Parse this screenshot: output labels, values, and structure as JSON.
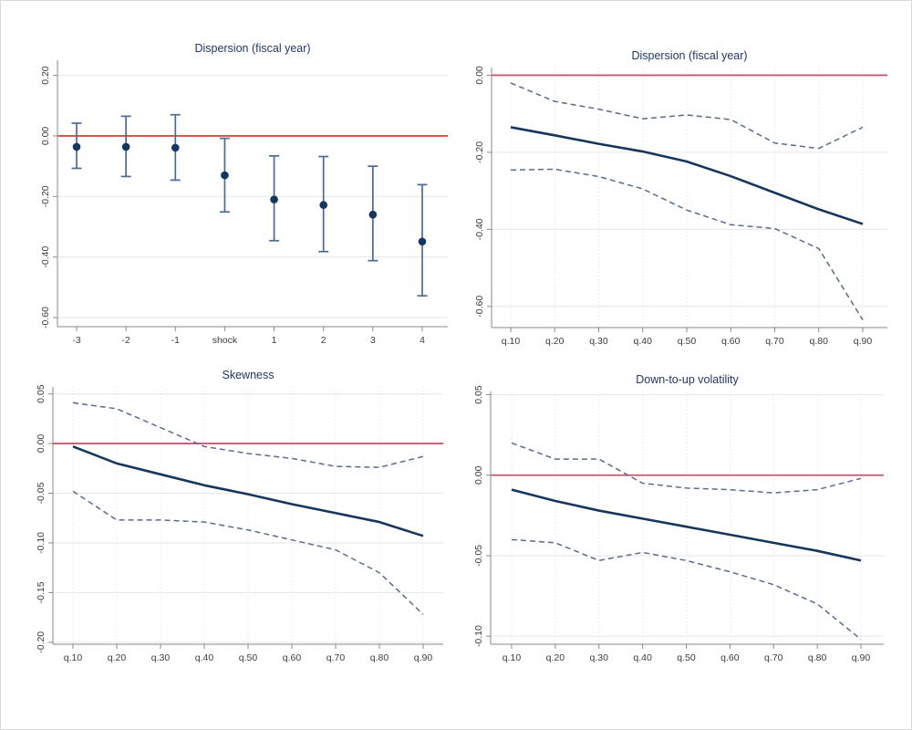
{
  "figure": {
    "background": "#ffffff",
    "border_color": "#d8d8d8",
    "description": "2x2 panel figure of quantile impulse-response estimates with confidence bands"
  },
  "colors": {
    "title": "#1f3864",
    "solid_line": "#17365d",
    "dashed_line": "#5a6b8c",
    "errorbar": "#4a6b96",
    "marker": "#14365f",
    "grid": "#e6e6e6",
    "vgrid": "#eadce0",
    "axis": "#8a8a8a",
    "tick_text": "#3d3d3d",
    "refline_bright_red": "#e8463a",
    "refline_rose": "#c9566f"
  },
  "chart_data": [
    {
      "type": "scatter",
      "title": "Dispersion (fiscal year)",
      "xlabel": "",
      "ylabel": "",
      "categories": [
        "-3",
        "-2",
        "-1",
        "shock",
        "1",
        "2",
        "3",
        "4"
      ],
      "points": [
        {
          "x": "-3",
          "est": -0.036,
          "lo": -0.107,
          "hi": 0.042
        },
        {
          "x": "-2",
          "est": -0.036,
          "lo": -0.134,
          "hi": 0.065
        },
        {
          "x": "-1",
          "est": -0.039,
          "lo": -0.146,
          "hi": 0.07
        },
        {
          "x": "shock",
          "est": -0.13,
          "lo": -0.251,
          "hi": -0.008
        },
        {
          "x": "1",
          "est": -0.21,
          "lo": -0.346,
          "hi": -0.066
        },
        {
          "x": "2",
          "est": -0.228,
          "lo": -0.382,
          "hi": -0.068
        },
        {
          "x": "3",
          "est": -0.26,
          "lo": -0.412,
          "hi": -0.1
        },
        {
          "x": "4",
          "est": -0.349,
          "lo": -0.528,
          "hi": -0.161
        }
      ],
      "yticks": [
        {
          "v": 0.2,
          "label": "0.20"
        },
        {
          "v": 0.0,
          "label": "0.00"
        },
        {
          "v": -0.2,
          "label": "-0.20"
        },
        {
          "v": -0.4,
          "label": "-0.40"
        },
        {
          "v": -0.6,
          "label": "-0.60"
        }
      ],
      "ylim": [
        -0.63,
        0.25
      ],
      "refline": 0,
      "refline_color": "#e8463a",
      "vgrid": false,
      "grid": true,
      "legend": "none",
      "layout": {
        "l": 62,
        "r": 10,
        "t": 25,
        "b": 43,
        "padl": 21,
        "padr": 28
      }
    },
    {
      "type": "line",
      "title": "Dispersion (fiscal year)",
      "xlabel": "",
      "ylabel": "",
      "categories": [
        "q.10",
        "q.20",
        "q.30",
        "q.40",
        "q.50",
        "q.60",
        "q.70",
        "q.80",
        "q.90"
      ],
      "series": [
        {
          "name": "estimate",
          "style": "solid",
          "values": [
            -0.135,
            -0.156,
            -0.178,
            -0.198,
            -0.224,
            -0.262,
            -0.305,
            -0.348,
            -0.386
          ]
        },
        {
          "name": "upper-ci",
          "style": "dashed",
          "values": [
            -0.02,
            -0.068,
            -0.088,
            -0.113,
            -0.103,
            -0.115,
            -0.176,
            -0.19,
            -0.135
          ]
        },
        {
          "name": "lower-ci",
          "style": "dashed",
          "values": [
            -0.246,
            -0.244,
            -0.263,
            -0.295,
            -0.35,
            -0.388,
            -0.398,
            -0.45,
            -0.635
          ]
        }
      ],
      "yticks": [
        {
          "v": 0.0,
          "label": "0.00"
        },
        {
          "v": -0.2,
          "label": "-0.20"
        },
        {
          "v": -0.4,
          "label": "-0.40"
        },
        {
          "v": -0.6,
          "label": "-0.60"
        }
      ],
      "ylim": [
        -0.655,
        0.02
      ],
      "refline": 0,
      "refline_color": "#c9566f",
      "vgrid": true,
      "grid": true,
      "legend": "none",
      "layout": {
        "l": 38,
        "r": 28,
        "t": 33,
        "b": 42,
        "padl": 21,
        "padr": 27
      }
    },
    {
      "type": "line",
      "title": "Skewness",
      "xlabel": "",
      "ylabel": "",
      "categories": [
        "q.10",
        "q.20",
        "q.30",
        "q.40",
        "q.50",
        "q.60",
        "q.70",
        "q.80",
        "q.90"
      ],
      "series": [
        {
          "name": "estimate",
          "style": "solid",
          "values": [
            -0.003,
            -0.02,
            -0.031,
            -0.042,
            -0.051,
            -0.061,
            -0.07,
            -0.079,
            -0.093
          ]
        },
        {
          "name": "upper-ci",
          "style": "dashed",
          "values": [
            0.041,
            0.035,
            0.016,
            -0.003,
            -0.01,
            -0.015,
            -0.023,
            -0.024,
            -0.013
          ]
        },
        {
          "name": "lower-ci",
          "style": "dashed",
          "values": [
            -0.048,
            -0.077,
            -0.077,
            -0.079,
            -0.087,
            -0.097,
            -0.107,
            -0.13,
            -0.172
          ]
        }
      ],
      "yticks": [
        {
          "v": 0.05,
          "label": "0.05"
        },
        {
          "v": 0.0,
          "label": "0.00"
        },
        {
          "v": -0.05,
          "label": "-0.05"
        },
        {
          "v": -0.1,
          "label": "-0.10"
        },
        {
          "v": -0.15,
          "label": "-0.15"
        },
        {
          "v": -0.2,
          "label": "-0.20"
        }
      ],
      "ylim": [
        -0.202,
        0.057
      ],
      "refline": 0,
      "refline_color": "#c9566f",
      "vgrid": true,
      "grid": true,
      "legend": "none",
      "layout": {
        "l": 57,
        "r": 15,
        "t": 23,
        "b": 55,
        "padl": 22,
        "padr": 22
      }
    },
    {
      "type": "line",
      "title": "Down-to-up volatility",
      "xlabel": "",
      "ylabel": "",
      "categories": [
        "q.10",
        "q.20",
        "q.30",
        "q.40",
        "q.50",
        "q.60",
        "q.70",
        "q.80",
        "q.90"
      ],
      "series": [
        {
          "name": "estimate",
          "style": "solid",
          "values": [
            -0.009,
            -0.016,
            -0.022,
            -0.027,
            -0.032,
            -0.037,
            -0.042,
            -0.047,
            -0.053
          ]
        },
        {
          "name": "upper-ci",
          "style": "dashed",
          "values": [
            0.02,
            0.01,
            0.01,
            -0.005,
            -0.008,
            -0.009,
            -0.011,
            -0.009,
            -0.002
          ]
        },
        {
          "name": "lower-ci",
          "style": "dashed",
          "values": [
            -0.04,
            -0.042,
            -0.053,
            -0.048,
            -0.053,
            -0.06,
            -0.068,
            -0.08,
            -0.102
          ]
        }
      ],
      "yticks": [
        {
          "v": 0.05,
          "label": "0.05"
        },
        {
          "v": 0.0,
          "label": "0.00"
        },
        {
          "v": -0.05,
          "label": "-0.05"
        },
        {
          "v": -0.1,
          "label": "-0.10"
        }
      ],
      "ylim": [
        -0.105,
        0.052
      ],
      "refline": 0,
      "refline_color": "#c9566f",
      "vgrid": true,
      "grid": true,
      "legend": "none",
      "layout": {
        "l": 37,
        "r": 32,
        "t": 28,
        "b": 55,
        "padl": 23,
        "padr": 25
      }
    }
  ]
}
